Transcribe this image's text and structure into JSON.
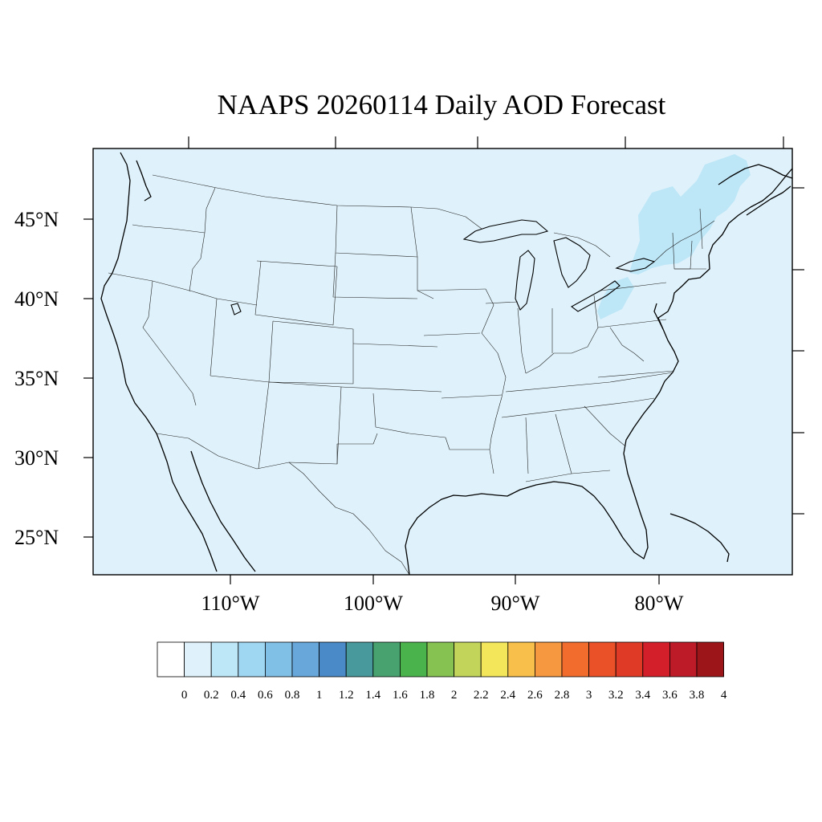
{
  "title": "NAAPS 20260114 Daily AOD Forecast",
  "map": {
    "background_color": "#dff2fb",
    "lon_labels": [
      "110°W",
      "100°W",
      "90°W",
      "80°W"
    ],
    "lat_labels": [
      "45°N",
      "40°N",
      "35°N",
      "30°N",
      "25°N"
    ],
    "aod_regions": [
      {
        "name": "northeast-plume",
        "value_range": "0.2–0.4",
        "color": "#bde6f7"
      },
      {
        "name": "appalachian-plume",
        "value_range": "0.2–0.4",
        "color": "#bde6f7"
      }
    ]
  },
  "colorbar": {
    "labels": [
      "0",
      "0.2",
      "0.4",
      "0.6",
      "0.8",
      "1",
      "1.2",
      "1.4",
      "1.6",
      "1.8",
      "2",
      "2.2",
      "2.4",
      "2.6",
      "2.8",
      "3",
      "3.2",
      "3.4",
      "3.6",
      "3.8",
      "4"
    ],
    "colors": [
      "#ffffff",
      "#dff2fb",
      "#bde6f7",
      "#9fd7f2",
      "#80bfe6",
      "#67a7da",
      "#4a8ac9",
      "#48999b",
      "#47a26f",
      "#4ab34b",
      "#86c251",
      "#c2d55a",
      "#f4e65b",
      "#f8c04a",
      "#f6983f",
      "#f26c2e",
      "#ea5129",
      "#df3a26",
      "#d21f29",
      "#bd1b27",
      "#9c1619"
    ]
  }
}
